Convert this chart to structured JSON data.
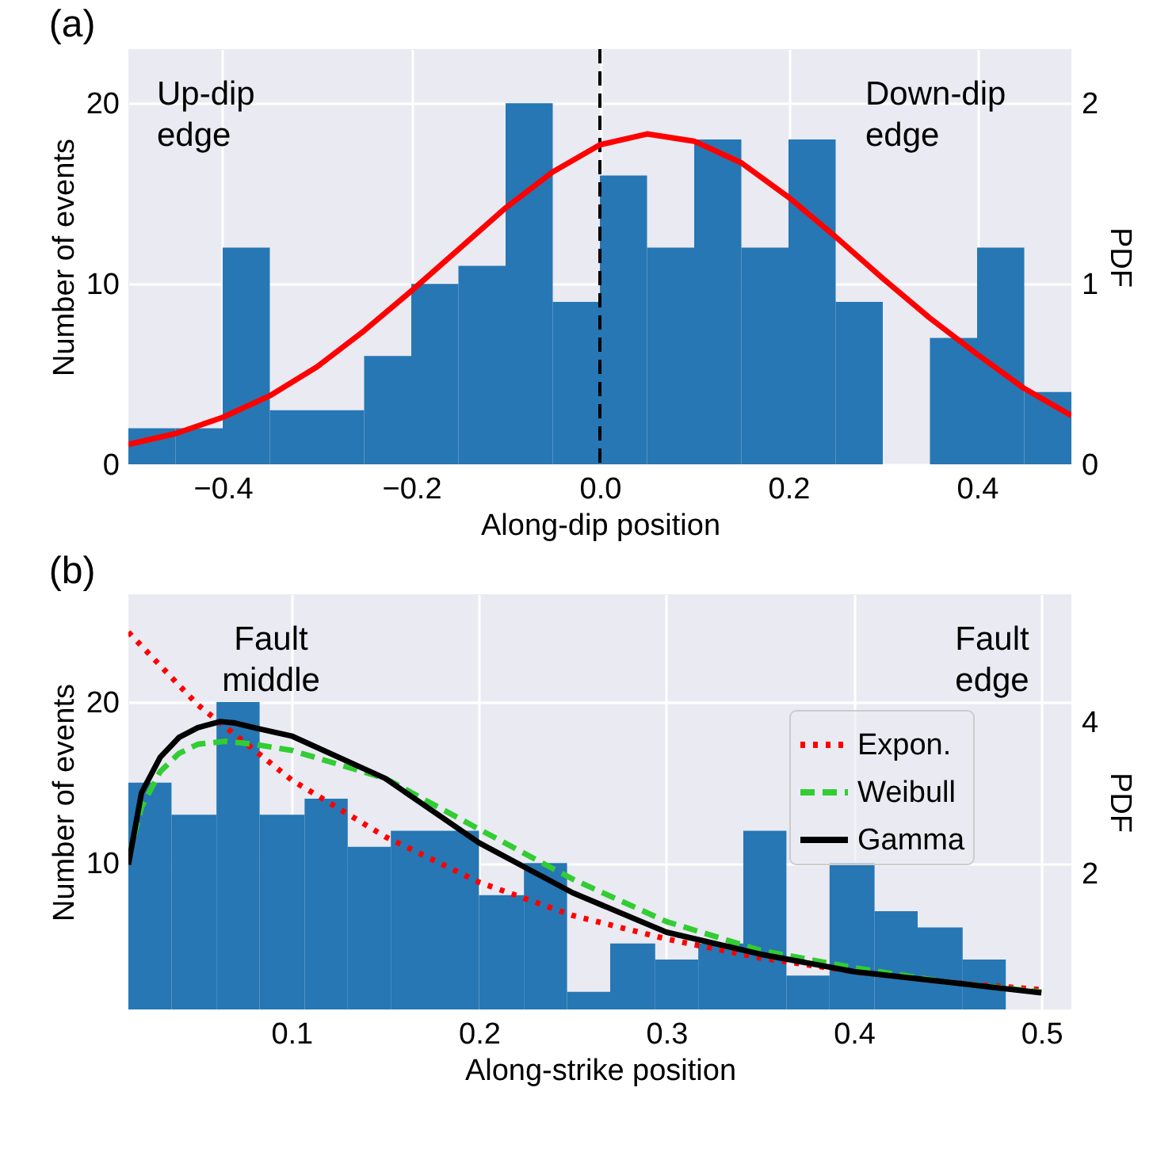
{
  "chart_data": [
    {
      "type": "histogram",
      "title": "(a)",
      "xlabel": "Along-dip position",
      "ylabel": "Number of events",
      "y2label": "PDF",
      "xlim": [
        -0.5,
        0.5
      ],
      "xticks": [
        {
          "value": -0.4,
          "label": "−0.4"
        },
        {
          "value": -0.2,
          "label": "−0.2"
        },
        {
          "value": 0,
          "label": "0.0"
        },
        0.2,
        0.4
      ],
      "ylim": [
        0,
        23
      ],
      "yticks": [
        0,
        10,
        20
      ],
      "y2lim": [
        0,
        2.3
      ],
      "y2ticks": [
        0,
        1,
        2
      ],
      "grid": true,
      "series": [
        {
          "type": "histogram",
          "color": "#2677b4",
          "bins": [
            -0.5,
            -0.45,
            -0.4,
            -0.35,
            -0.3,
            -0.25,
            -0.2,
            -0.15,
            -0.1,
            -0.05,
            0,
            0.05,
            0.1,
            0.15,
            0.2,
            0.25,
            0.3,
            0.35,
            0.4,
            0.45,
            0.5
          ],
          "values": [
            2,
            2,
            12,
            3,
            3,
            6,
            10,
            11,
            20,
            9,
            16,
            12,
            18,
            12,
            18,
            9,
            0,
            7,
            12,
            4
          ]
        },
        {
          "type": "line",
          "axis": "y2",
          "color": "#ff0000",
          "line_style": "solid",
          "x": [
            -0.5,
            -0.45,
            -0.4,
            -0.35,
            -0.3,
            -0.25,
            -0.2,
            -0.15,
            -0.1,
            -0.05,
            0,
            0.05,
            0.1,
            0.15,
            0.2,
            0.25,
            0.3,
            0.35,
            0.4,
            0.45,
            0.5
          ],
          "values": [
            0.11,
            0.17,
            0.26,
            0.38,
            0.54,
            0.74,
            0.96,
            1.19,
            1.42,
            1.62,
            1.77,
            1.83,
            1.79,
            1.67,
            1.48,
            1.26,
            1.03,
            0.81,
            0.61,
            0.42,
            0.27
          ]
        }
      ],
      "ref_lines": [
        {
          "axis": "x",
          "value": 0,
          "color": "#000000",
          "line_style": "dashed"
        }
      ],
      "annotations": [
        "Up-dip edge",
        "Down-dip edge"
      ]
    },
    {
      "type": "histogram",
      "title": "(b)",
      "xlabel": "Along-strike position",
      "ylabel": "Number of events",
      "y2label": "PDF",
      "xlim": [
        0.013,
        0.516
      ],
      "xticks": [
        0.1,
        0.2,
        0.3,
        0.4,
        0.5
      ],
      "ylim": [
        0.9,
        26.7
      ],
      "yticks": [
        10,
        20
      ],
      "y2lim": [
        0.2,
        5.68
      ],
      "y2ticks": [
        2,
        4
      ],
      "grid": true,
      "legend": "top right",
      "series": [
        {
          "type": "histogram",
          "color": "#2677b4",
          "bins": [
            0.013,
            0.036,
            0.06,
            0.083,
            0.107,
            0.13,
            0.153,
            0.177,
            0.2,
            0.224,
            0.247,
            0.27,
            0.294,
            0.317,
            0.341,
            0.364,
            0.387,
            0.411,
            0.434,
            0.458,
            0.481
          ],
          "values": [
            15,
            13,
            20,
            13,
            14,
            11,
            12,
            12,
            8,
            10,
            2,
            5,
            4,
            5,
            12,
            3,
            10,
            7,
            6,
            4
          ]
        },
        {
          "type": "line",
          "axis": "y2",
          "name": "Expon.",
          "color": "#ff0000",
          "line_style": "dotted",
          "x": [
            0.013,
            0.05,
            0.1,
            0.15,
            0.2,
            0.25,
            0.3,
            0.35,
            0.4,
            0.45,
            0.5
          ],
          "values": [
            5.18,
            4.22,
            3.23,
            2.48,
            1.88,
            1.44,
            1.13,
            0.88,
            0.7,
            0.56,
            0.46
          ]
        },
        {
          "type": "line",
          "axis": "y2",
          "name": "Weibull",
          "color": "#32cd32",
          "line_style": "dashed",
          "x": [
            0.013,
            0.02,
            0.03,
            0.04,
            0.05,
            0.065,
            0.08,
            0.1,
            0.15,
            0.2,
            0.25,
            0.3,
            0.35,
            0.4,
            0.45,
            0.5
          ],
          "values": [
            2.2,
            2.87,
            3.34,
            3.58,
            3.7,
            3.74,
            3.7,
            3.62,
            3.25,
            2.58,
            1.92,
            1.36,
            0.98,
            0.75,
            0.56,
            0.43
          ]
        },
        {
          "type": "line",
          "axis": "y2",
          "name": "Gamma",
          "color": "#000000",
          "line_style": "solid",
          "x": [
            0.013,
            0.02,
            0.03,
            0.04,
            0.05,
            0.062,
            0.07,
            0.08,
            0.1,
            0.15,
            0.2,
            0.25,
            0.3,
            0.35,
            0.4,
            0.45,
            0.5
          ],
          "values": [
            2.11,
            3.06,
            3.53,
            3.79,
            3.92,
            4.0,
            3.98,
            3.92,
            3.81,
            3.25,
            2.4,
            1.74,
            1.22,
            0.93,
            0.7,
            0.56,
            0.42
          ]
        }
      ],
      "annotations": [
        "Fault middle",
        "Fault edge"
      ]
    }
  ]
}
